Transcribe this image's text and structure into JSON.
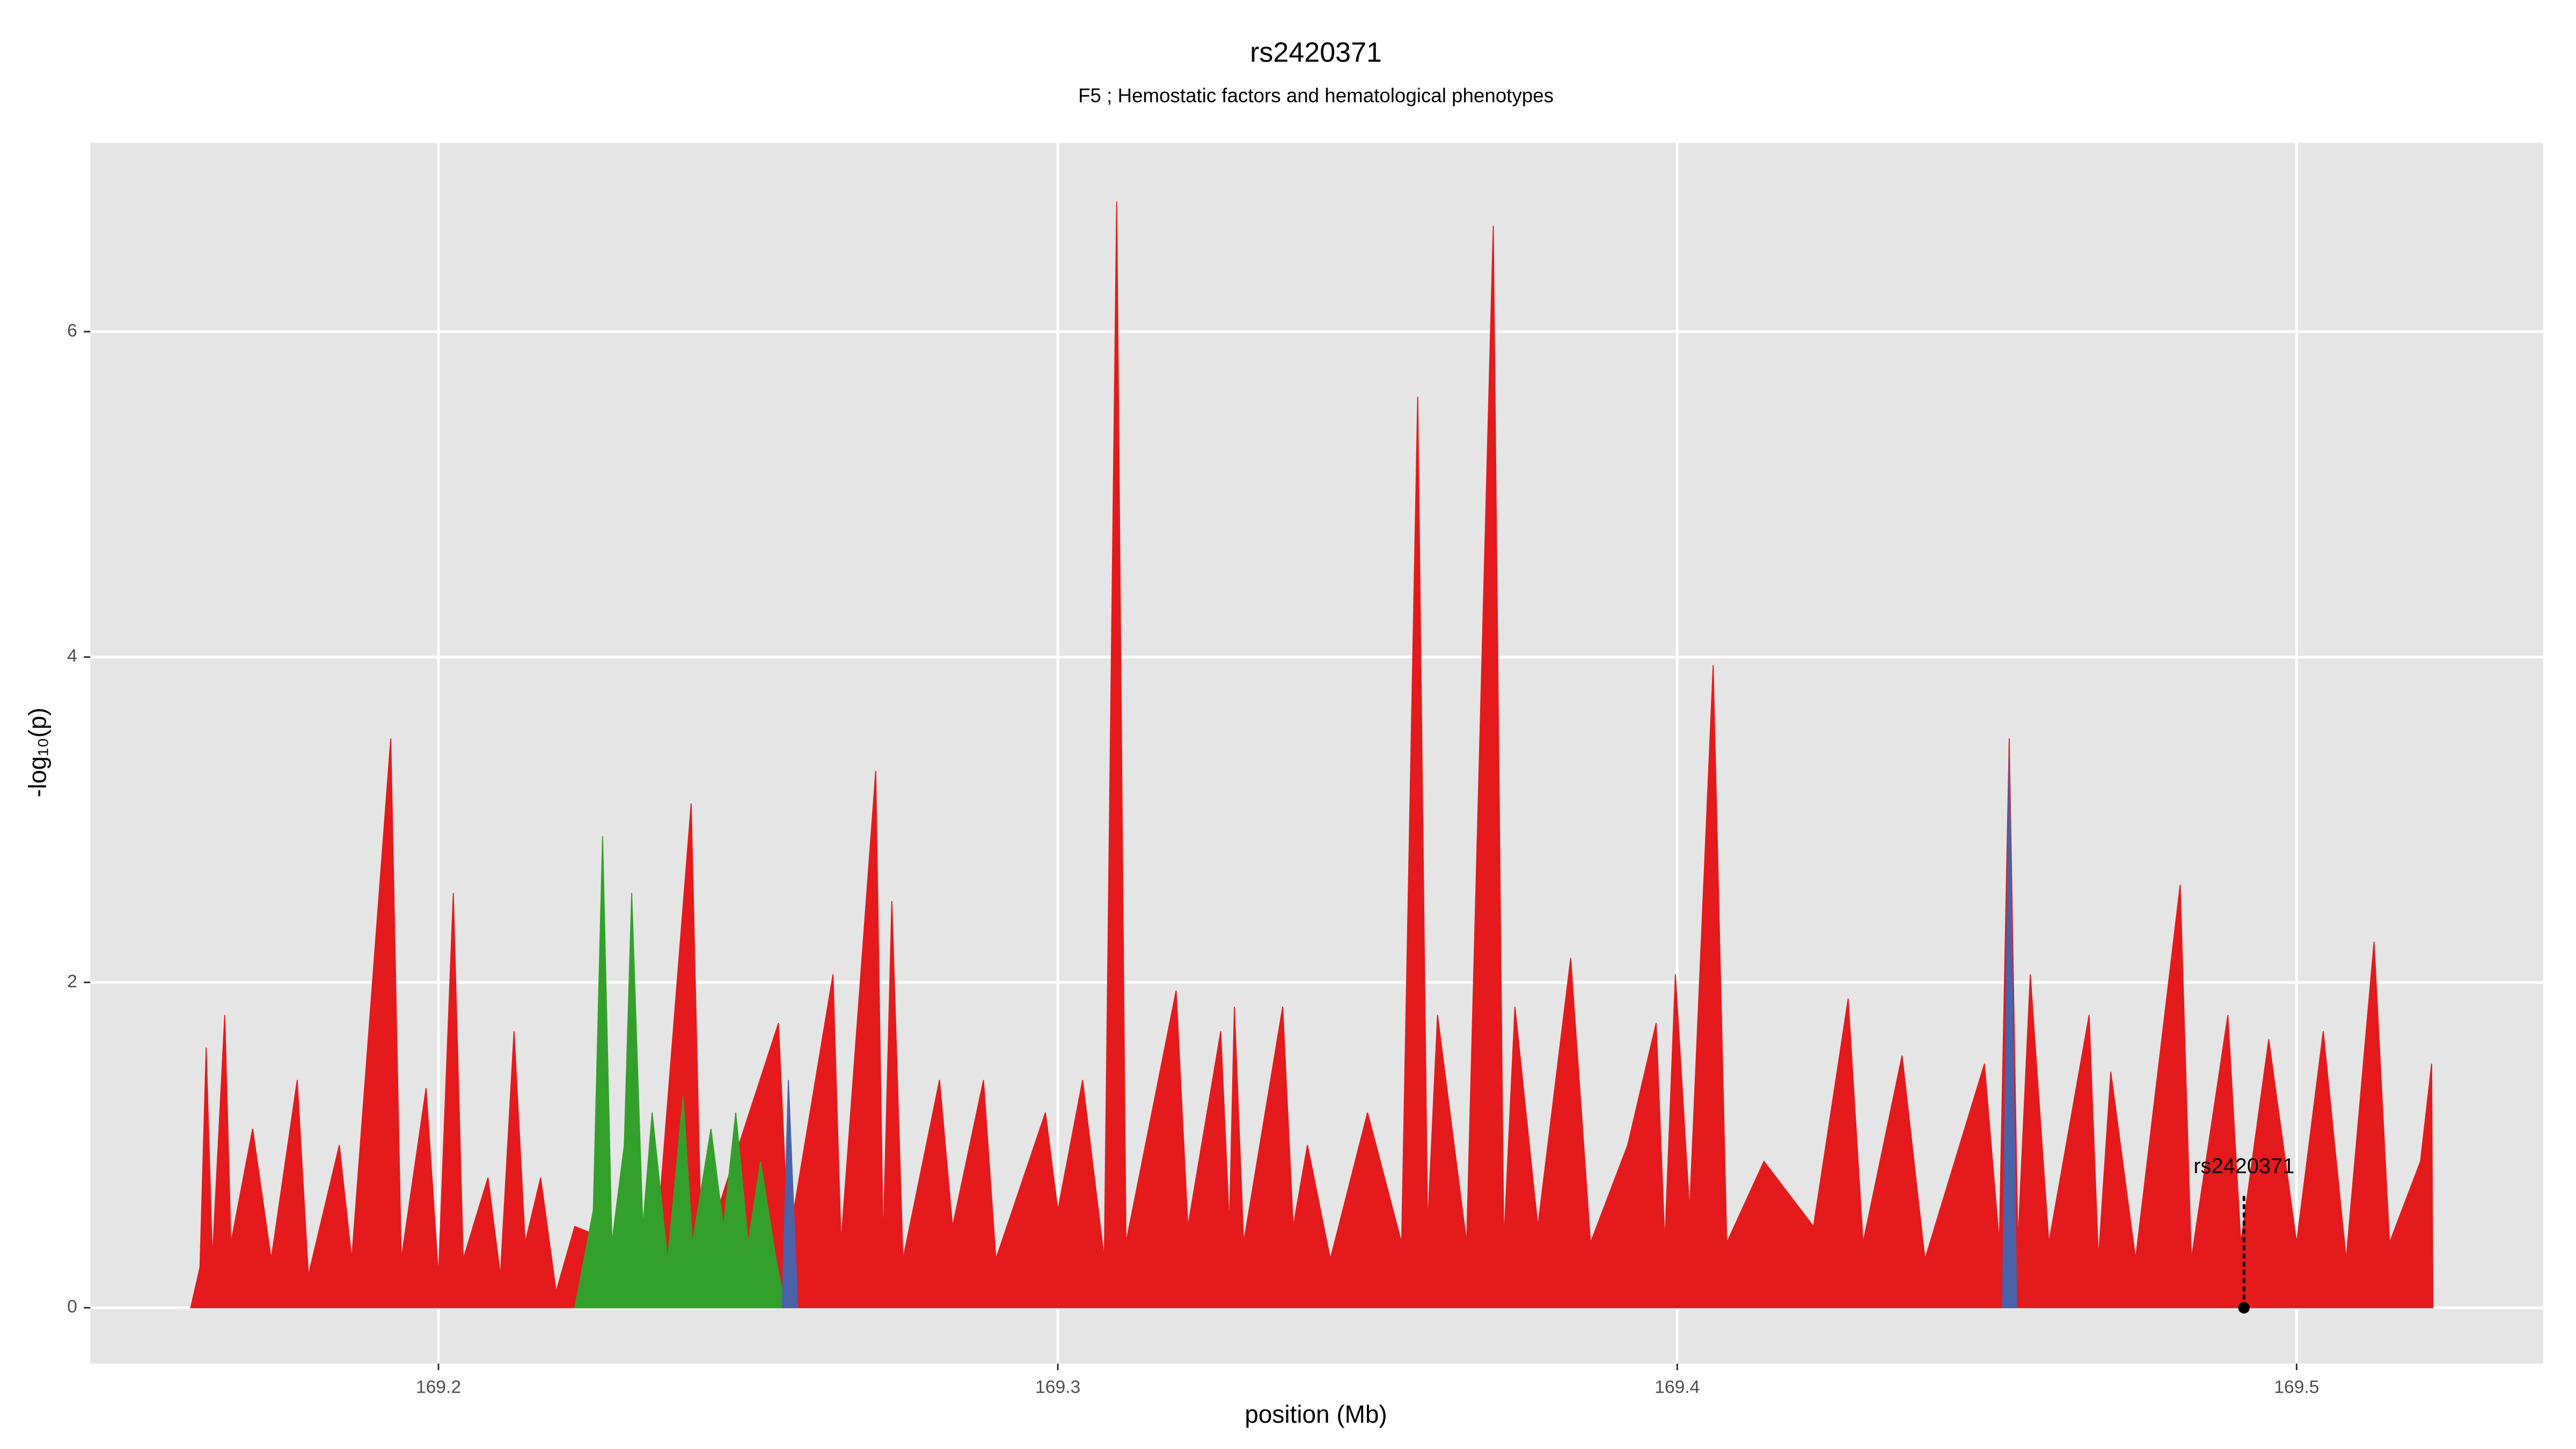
{
  "chart_data": {
    "type": "area",
    "title": "rs2420371",
    "subtitle": "F5 ; Hemostatic factors and hematological phenotypes",
    "x_label": "position (Mb)",
    "y_label": "-log₁₀(p)",
    "xlim": [
      169.1438,
      169.5398
    ],
    "ylim": [
      -0.343,
      7.16
    ],
    "xticks": [
      169.2,
      169.3,
      169.4,
      169.5
    ],
    "yticks": [
      0,
      2,
      4,
      6
    ],
    "grid": true,
    "series": [
      {
        "color": "#e41a1c",
        "x": [
          169.16,
          169.1615,
          169.1625,
          169.1635,
          169.1655,
          169.1665,
          169.17,
          169.173,
          169.1772,
          169.179,
          169.184,
          169.186,
          169.1923,
          169.194,
          169.198,
          169.2,
          169.2024,
          169.204,
          169.208,
          169.21,
          169.2122,
          169.214,
          169.2165,
          169.219,
          169.222,
          169.235,
          169.2408,
          169.2425,
          169.2549,
          169.2565,
          169.2637,
          169.265,
          169.2706,
          169.2718,
          169.2732,
          169.275,
          169.2809,
          169.283,
          169.288,
          169.29,
          169.298,
          169.3,
          169.304,
          169.3075,
          169.3095,
          169.311,
          169.3191,
          169.321,
          169.3263,
          169.3277,
          169.3285,
          169.33,
          169.3363,
          169.338,
          169.3403,
          169.344,
          169.35,
          169.3555,
          169.3581,
          169.3597,
          169.3613,
          169.366,
          169.3703,
          169.372,
          169.3738,
          169.3775,
          169.3828,
          169.386,
          169.392,
          169.3966,
          169.398,
          169.3997,
          169.402,
          169.4058,
          169.408,
          169.414,
          169.422,
          169.4276,
          169.43,
          169.4363,
          169.44,
          169.4496,
          169.452,
          169.4536,
          169.455,
          169.457,
          169.46,
          169.4665,
          169.468,
          169.47,
          169.474,
          169.4812,
          169.483,
          169.4889,
          169.491,
          169.4955,
          169.5,
          169.5043,
          169.508,
          169.5125,
          169.515,
          169.52,
          169.5218,
          169.522
        ],
        "values": [
          0,
          0.25,
          1.6,
          0.3,
          1.8,
          0.4,
          1.1,
          0.3,
          1.4,
          0.2,
          1.0,
          0.3,
          3.5,
          0.3,
          1.35,
          0.2,
          2.55,
          0.3,
          0.8,
          0.2,
          1.7,
          0.4,
          0.8,
          0.1,
          0.5,
          0.3,
          3.1,
          0.3,
          1.75,
          0.4,
          2.05,
          0.4,
          3.3,
          0.4,
          2.5,
          0.3,
          1.4,
          0.5,
          1.4,
          0.3,
          1.2,
          0.6,
          1.4,
          0.3,
          6.8,
          0.4,
          1.95,
          0.5,
          1.7,
          0.5,
          1.85,
          0.4,
          1.85,
          0.5,
          1.0,
          0.3,
          1.2,
          0.4,
          5.6,
          0.5,
          1.8,
          0.4,
          6.65,
          0.4,
          1.85,
          0.5,
          2.15,
          0.4,
          1.0,
          1.75,
          0.4,
          2.05,
          0.6,
          3.95,
          0.4,
          0.9,
          0.5,
          1.9,
          0.4,
          1.55,
          0.3,
          1.5,
          0.4,
          3.5,
          0.4,
          2.05,
          0.4,
          1.8,
          0.3,
          1.45,
          0.3,
          2.6,
          0.3,
          1.8,
          0.4,
          1.65,
          0.4,
          1.7,
          0.3,
          2.25,
          0.4,
          0.9,
          1.5,
          0
        ]
      },
      {
        "color": "#33a02c",
        "x": [
          169.222,
          169.225,
          169.2265,
          169.228,
          169.23,
          169.2312,
          169.233,
          169.2345,
          169.237,
          169.2395,
          169.241,
          169.244,
          169.246,
          169.248,
          169.25,
          169.252,
          169.2545,
          169.256
        ],
        "values": [
          0,
          0.6,
          2.9,
          0.4,
          1.0,
          2.55,
          0.5,
          1.2,
          0.3,
          1.3,
          0.4,
          1.1,
          0.5,
          1.2,
          0.4,
          0.9,
          0.3,
          0
        ]
      },
      {
        "color": "#4a62a8",
        "x": [
          169.2555,
          169.2565,
          169.258,
          169.3,
          169.4525,
          169.4536,
          169.4548
        ],
        "values": [
          0,
          1.4,
          0,
          null,
          0,
          3.4,
          0
        ]
      }
    ],
    "annotation": {
      "text": "rs2420371",
      "x": 169.4915,
      "y": [
        0,
        0.7
      ]
    }
  }
}
